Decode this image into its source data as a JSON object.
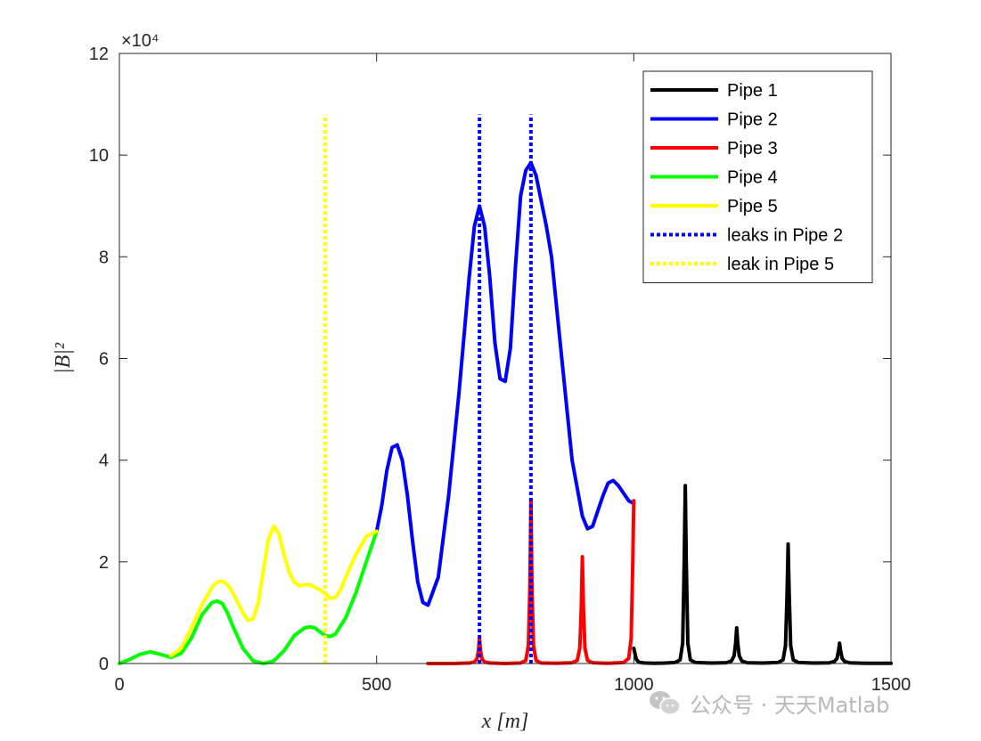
{
  "chart_data": {
    "type": "line",
    "title": "",
    "xlabel": "x [m]",
    "ylabel": "|B|²",
    "xlim": [
      0,
      1500
    ],
    "ylim": [
      0,
      120000
    ],
    "y_exponent_label": "×10⁴",
    "x_ticks": [
      0,
      500,
      1000,
      1500
    ],
    "x_tick_labels": [
      "0",
      "500",
      "1000",
      "1500"
    ],
    "y_ticks": [
      0,
      20000,
      40000,
      60000,
      80000,
      100000,
      120000
    ],
    "y_tick_labels": [
      "0",
      "2",
      "4",
      "6",
      "8",
      "10",
      "12"
    ],
    "grid": false,
    "legend_position": "top-right",
    "series": [
      {
        "name": "Pipe 1",
        "color": "#000000",
        "style": "solid",
        "x": [
          1000,
          1005,
          1010,
          1020,
          1040,
          1060,
          1080,
          1090,
          1095,
          1098,
          1100,
          1102,
          1105,
          1110,
          1120,
          1150,
          1180,
          1190,
          1195,
          1198,
          1200,
          1202,
          1205,
          1210,
          1220,
          1250,
          1280,
          1290,
          1295,
          1298,
          1300,
          1302,
          1305,
          1310,
          1320,
          1350,
          1380,
          1390,
          1395,
          1398,
          1400,
          1402,
          1405,
          1410,
          1420,
          1450,
          1480,
          1500
        ],
        "y": [
          3000,
          800,
          250,
          100,
          60,
          80,
          200,
          700,
          4000,
          20000,
          35000,
          20000,
          4000,
          700,
          200,
          80,
          150,
          500,
          1500,
          4000,
          7000,
          4000,
          1500,
          500,
          150,
          80,
          200,
          700,
          3500,
          14000,
          23500,
          14000,
          3500,
          700,
          200,
          80,
          120,
          400,
          1000,
          2500,
          4000,
          2500,
          1000,
          400,
          120,
          60,
          50,
          50
        ]
      },
      {
        "name": "Pipe 2",
        "color": "#0000ff",
        "style": "solid",
        "x": [
          500,
          510,
          520,
          530,
          540,
          550,
          560,
          570,
          580,
          590,
          600,
          620,
          640,
          660,
          680,
          690,
          700,
          710,
          720,
          730,
          740,
          750,
          760,
          770,
          780,
          790,
          800,
          810,
          820,
          830,
          840,
          860,
          880,
          900,
          910,
          920,
          930,
          940,
          950,
          960,
          970,
          980,
          990,
          1000
        ],
        "y": [
          26000,
          31000,
          38000,
          42500,
          43000,
          40000,
          33000,
          24000,
          16000,
          12000,
          11500,
          17000,
          33000,
          53000,
          76000,
          86000,
          90000,
          86000,
          76000,
          63000,
          56000,
          55500,
          62000,
          78000,
          92000,
          97000,
          98500,
          96000,
          91000,
          86000,
          80000,
          60000,
          40000,
          29000,
          26500,
          27000,
          30000,
          33000,
          35500,
          36000,
          35000,
          33500,
          32000,
          31500
        ]
      },
      {
        "name": "Pipe 3",
        "color": "#ff0000",
        "style": "solid",
        "x": [
          600,
          650,
          680,
          690,
          695,
          698,
          700,
          702,
          705,
          710,
          720,
          750,
          780,
          790,
          795,
          798,
          800,
          802,
          805,
          810,
          820,
          850,
          880,
          890,
          895,
          898,
          900,
          902,
          905,
          910,
          920,
          950,
          980,
          990,
          995,
          998,
          1000
        ],
        "y": [
          0,
          0,
          100,
          300,
          900,
          2500,
          5000,
          2500,
          900,
          300,
          100,
          0,
          100,
          600,
          3500,
          15000,
          32000,
          15000,
          3500,
          600,
          100,
          50,
          150,
          600,
          3000,
          11000,
          21000,
          11000,
          3000,
          600,
          150,
          50,
          200,
          1000,
          5000,
          20000,
          32000
        ]
      },
      {
        "name": "Pipe 4",
        "color": "#00ff00",
        "style": "solid",
        "x": [
          0,
          20,
          40,
          60,
          80,
          100,
          120,
          140,
          160,
          180,
          190,
          200,
          210,
          220,
          240,
          260,
          280,
          300,
          320,
          340,
          360,
          370,
          380,
          390,
          400,
          410,
          420,
          440,
          460,
          480,
          500
        ],
        "y": [
          0,
          800,
          1800,
          2300,
          1800,
          1200,
          2000,
          5000,
          9500,
          12000,
          12300,
          11800,
          10000,
          7500,
          3000,
          500,
          0,
          500,
          2500,
          5500,
          7000,
          7200,
          7000,
          6200,
          5500,
          5300,
          5800,
          9000,
          14000,
          20000,
          26000
        ]
      },
      {
        "name": "Pipe 5",
        "color": "#ffff00",
        "style": "solid",
        "x": [
          100,
          120,
          140,
          160,
          180,
          190,
          200,
          210,
          220,
          240,
          250,
          260,
          270,
          280,
          290,
          300,
          310,
          320,
          330,
          340,
          350,
          360,
          370,
          380,
          390,
          400,
          410,
          420,
          430,
          440,
          460,
          480,
          500
        ],
        "y": [
          1500,
          3000,
          7000,
          11500,
          15000,
          16000,
          16200,
          15500,
          14000,
          10000,
          8500,
          8800,
          12000,
          18500,
          24500,
          27000,
          25500,
          21500,
          18000,
          16000,
          15300,
          15500,
          15500,
          15000,
          14500,
          13800,
          12800,
          13000,
          14500,
          17000,
          21500,
          25000,
          26000
        ]
      },
      {
        "name": "leaks in Pipe 2",
        "color": "#0000ff",
        "style": "dotted",
        "x": [
          700,
          800
        ],
        "y_range": [
          0,
          108000
        ]
      },
      {
        "name": "leak in Pipe 5",
        "color": "#ffff00",
        "style": "dotted",
        "x": [
          400
        ],
        "y_range": [
          0,
          108000
        ]
      }
    ]
  },
  "watermark": {
    "text": "公众号 · 天天Matlab"
  }
}
